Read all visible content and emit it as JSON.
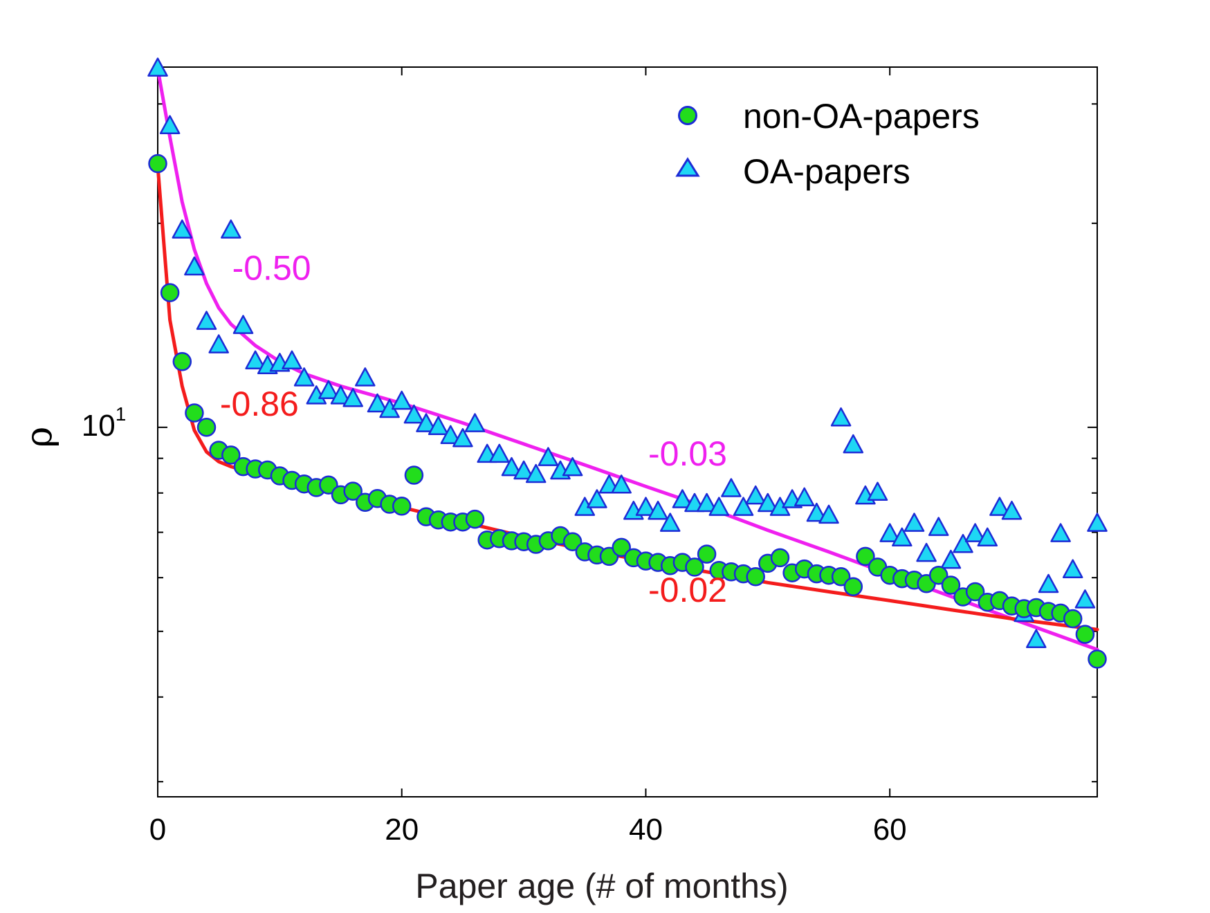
{
  "chart_data": {
    "type": "scatter",
    "title": "",
    "xlabel": "Paper age (# of months)",
    "ylabel": "ρ",
    "yscale": "log",
    "xlim": [
      0,
      77
    ],
    "ylim": [
      2.85,
      34
    ],
    "x_ticks": [
      0,
      20,
      40,
      60
    ],
    "y_tick_label": {
      "base": "10",
      "exponent": "1",
      "value": 10
    },
    "legend_position": "top-right",
    "series": [
      {
        "name": "non-OA-papers",
        "marker": "circle",
        "fill": "#22dd1c",
        "edge": "#1c2bd6",
        "x": [
          0,
          1,
          2,
          3,
          4,
          5,
          6,
          7,
          8,
          9,
          10,
          11,
          12,
          13,
          14,
          15,
          16,
          17,
          18,
          19,
          20,
          21,
          22,
          23,
          24,
          25,
          26,
          27,
          28,
          29,
          30,
          31,
          32,
          33,
          34,
          35,
          36,
          37,
          38,
          39,
          40,
          41,
          42,
          43,
          44,
          45,
          46,
          47,
          48,
          49,
          50,
          51,
          52,
          53,
          54,
          55,
          56,
          57,
          58,
          59,
          60,
          61,
          62,
          63,
          64,
          65,
          66,
          67,
          68,
          69,
          70,
          71,
          72,
          73,
          74,
          75,
          76,
          77
        ],
        "y": [
          24.5,
          15.8,
          12.5,
          10.5,
          10.0,
          9.25,
          9.1,
          8.75,
          8.68,
          8.65,
          8.48,
          8.35,
          8.25,
          8.15,
          8.22,
          7.95,
          8.05,
          7.75,
          7.85,
          7.7,
          7.65,
          8.5,
          7.38,
          7.3,
          7.25,
          7.25,
          7.32,
          6.82,
          6.85,
          6.8,
          6.78,
          6.72,
          6.8,
          6.92,
          6.78,
          6.55,
          6.48,
          6.45,
          6.65,
          6.42,
          6.35,
          6.32,
          6.25,
          6.32,
          6.22,
          6.5,
          6.15,
          6.12,
          6.08,
          6.02,
          6.3,
          6.42,
          6.1,
          6.18,
          6.08,
          6.05,
          6.02,
          5.82,
          6.45,
          6.22,
          6.05,
          5.98,
          5.95,
          5.88,
          6.05,
          5.85,
          5.62,
          5.72,
          5.52,
          5.55,
          5.45,
          5.4,
          5.42,
          5.35,
          5.32,
          5.22,
          4.95,
          4.55
        ]
      },
      {
        "name": "OA-papers",
        "marker": "triangle",
        "fill": "#1ed7f4",
        "edge": "#1c2bd6",
        "x": [
          0,
          1,
          2,
          3,
          4,
          5,
          6,
          7,
          8,
          9,
          10,
          11,
          12,
          13,
          14,
          15,
          16,
          17,
          18,
          19,
          20,
          21,
          22,
          23,
          24,
          25,
          26,
          27,
          28,
          29,
          30,
          31,
          32,
          33,
          34,
          35,
          36,
          37,
          38,
          39,
          40,
          41,
          42,
          43,
          44,
          45,
          46,
          47,
          48,
          49,
          50,
          51,
          52,
          53,
          54,
          55,
          56,
          57,
          58,
          59,
          60,
          61,
          62,
          63,
          64,
          65,
          66,
          67,
          68,
          69,
          70,
          71,
          72,
          73,
          74,
          75,
          76,
          77
        ],
        "y": [
          33.8,
          27.8,
          19.5,
          17.2,
          14.3,
          13.2,
          19.5,
          14.1,
          12.5,
          12.3,
          12.4,
          12.5,
          11.8,
          11.1,
          11.3,
          11.1,
          11.0,
          11.8,
          10.8,
          10.6,
          10.9,
          10.4,
          10.1,
          10.0,
          9.7,
          9.6,
          10.1,
          9.1,
          9.1,
          8.7,
          8.6,
          8.5,
          9.0,
          8.6,
          8.7,
          7.6,
          7.8,
          8.2,
          8.2,
          7.5,
          7.6,
          7.5,
          7.2,
          7.8,
          7.7,
          7.7,
          7.6,
          8.1,
          7.6,
          7.9,
          7.7,
          7.6,
          7.8,
          7.85,
          7.45,
          7.4,
          10.3,
          9.4,
          7.9,
          8.0,
          6.95,
          6.85,
          7.2,
          6.5,
          7.1,
          6.35,
          6.7,
          6.95,
          6.85,
          7.6,
          7.5,
          5.3,
          4.85,
          5.85,
          6.95,
          6.15,
          5.55,
          7.2
        ]
      }
    ],
    "fit_lines": [
      {
        "name": "OA fit",
        "color": "#ef20ef",
        "x": [
          0,
          1,
          2,
          3,
          4,
          5,
          6,
          8,
          10,
          12,
          15,
          20,
          25,
          30,
          35,
          40,
          45,
          50,
          55,
          60,
          65,
          70,
          77
        ],
        "y": [
          33.8,
          26.8,
          21.5,
          18.3,
          16.3,
          15.0,
          14.2,
          13.2,
          12.5,
          12.0,
          11.5,
          10.85,
          10.15,
          9.45,
          8.8,
          8.18,
          7.62,
          7.05,
          6.55,
          6.07,
          5.63,
          5.22,
          4.7
        ]
      },
      {
        "name": "non-OA fit",
        "color": "#f41c1c",
        "x": [
          0,
          1,
          2,
          3,
          4,
          5,
          6,
          8,
          10,
          15,
          20,
          25,
          30,
          35,
          40,
          45,
          50,
          55,
          60,
          65,
          70,
          77
        ],
        "y": [
          24.3,
          14.4,
          11.5,
          9.9,
          9.2,
          8.9,
          8.75,
          8.55,
          8.38,
          8.0,
          7.62,
          7.25,
          6.9,
          6.6,
          6.35,
          6.12,
          5.9,
          5.72,
          5.55,
          5.38,
          5.22,
          5.03
        ]
      }
    ],
    "annotations": [
      {
        "text": "-0.50",
        "color": "#ef20ef",
        "x": 6.1,
        "y": 16.5
      },
      {
        "text": "-0.86",
        "color": "#f41c1c",
        "x": 5.1,
        "y": 10.4
      },
      {
        "text": "-0.03",
        "color": "#ef20ef",
        "x": 40.2,
        "y": 8.78
      },
      {
        "text": "-0.02",
        "color": "#f41c1c",
        "x": 40.2,
        "y": 5.53
      }
    ]
  }
}
